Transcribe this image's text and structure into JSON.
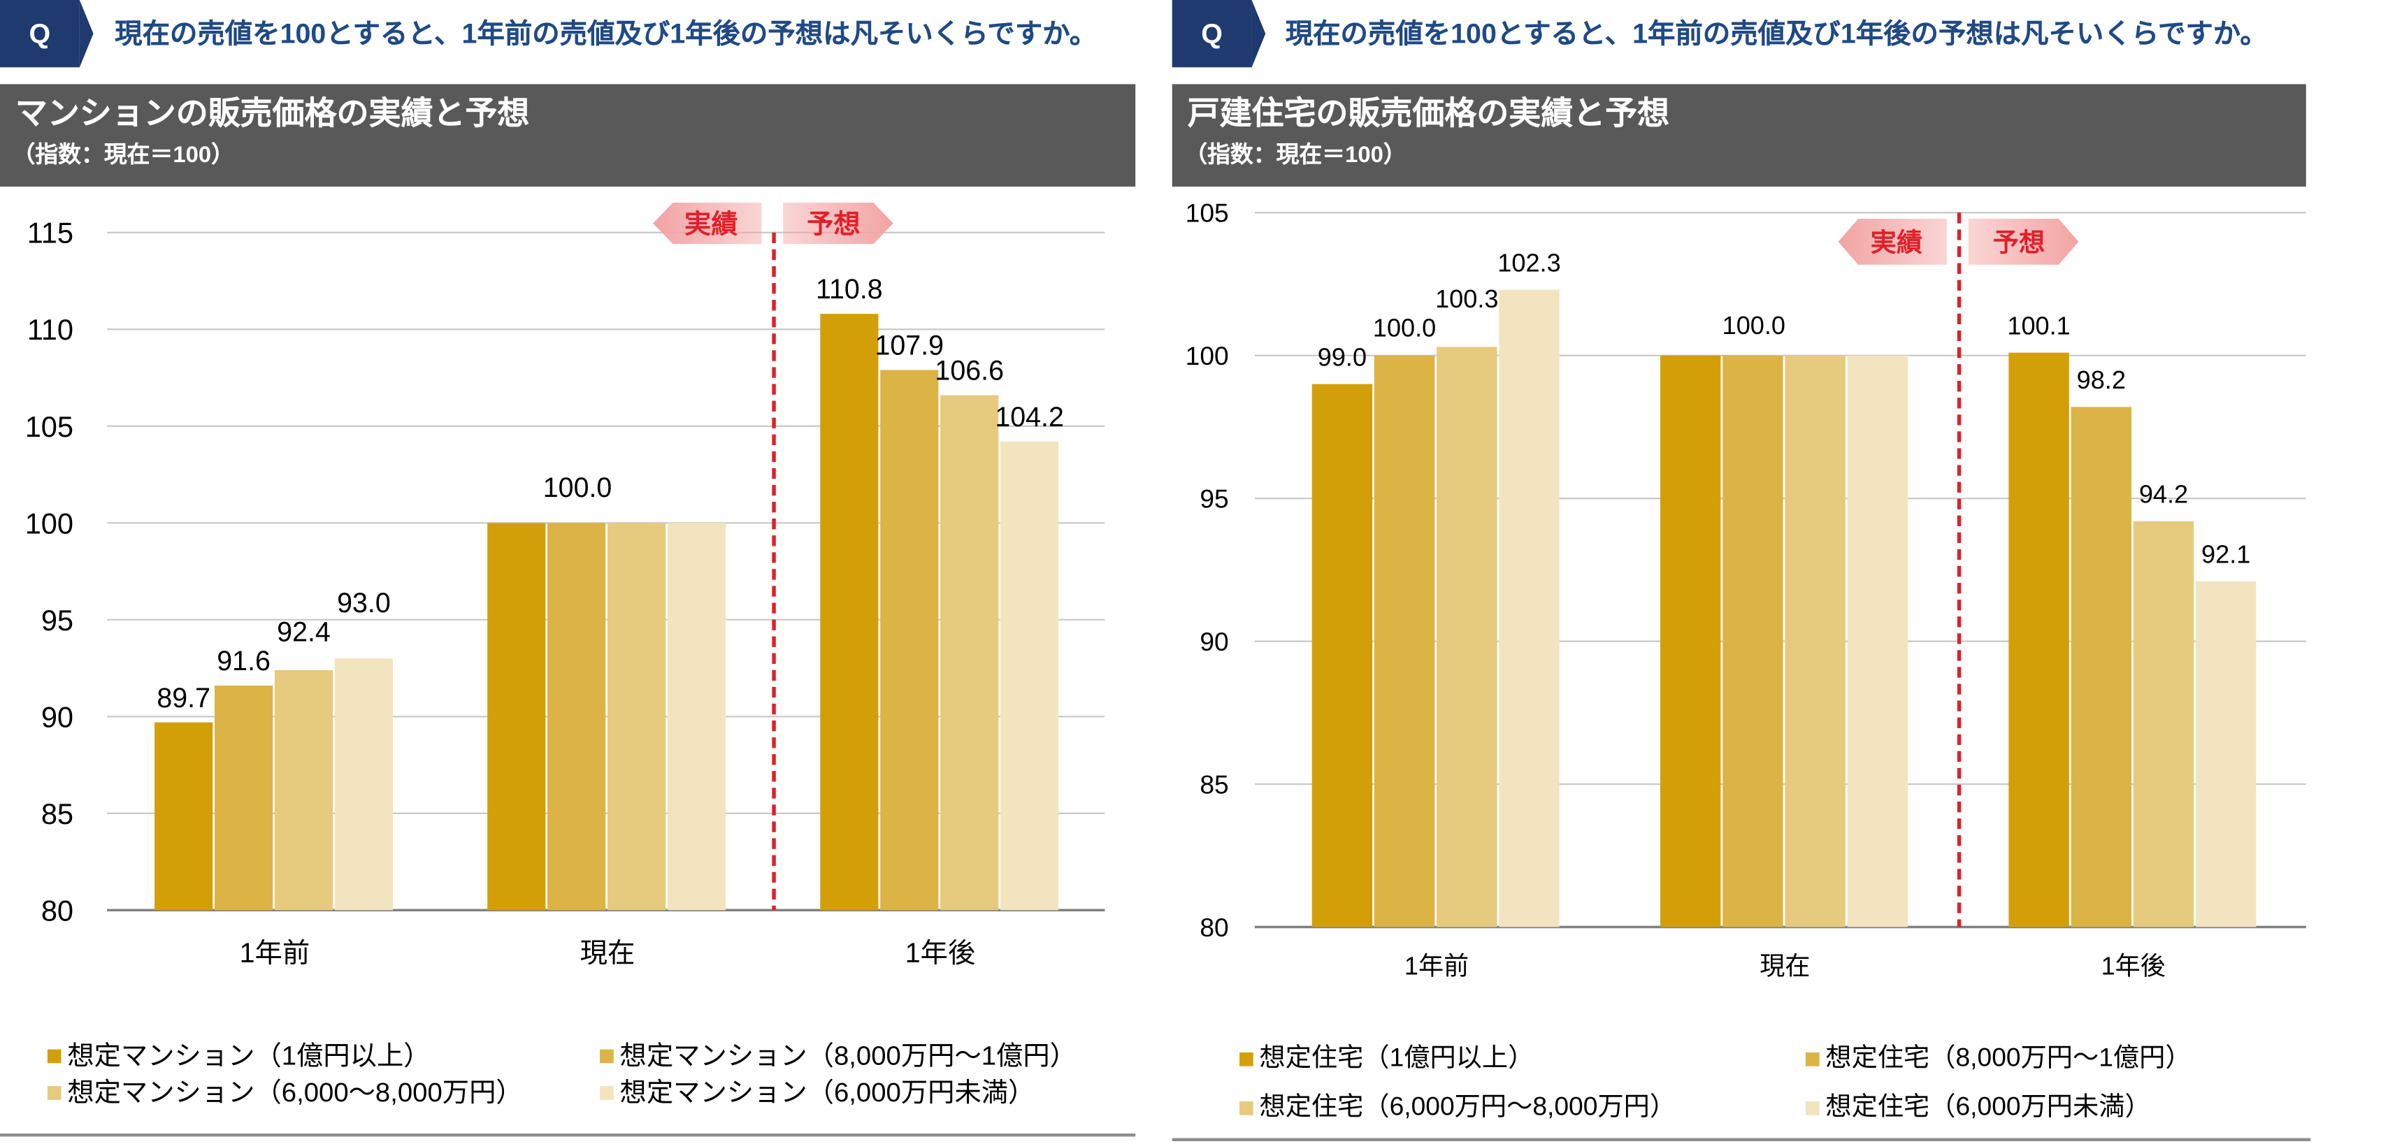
{
  "questions": [
    {
      "badge": "Q",
      "text": "現在の売値を100とすると、1年前の売値及び1年後の予想は凡そいくらですか。"
    },
    {
      "badge": "Q",
      "text": "現在の売値を100とすると、1年前の売値及び1年後の予想は凡そいくらですか。"
    }
  ],
  "colors": {
    "badge": "#1E3A6E",
    "question_text": "#1F4A85",
    "header_bg": "#595959",
    "header_text": "#FFFFFF",
    "divider": "#E0202A",
    "annotation_arrow": "#F3A3A3",
    "annotation_text": "#E0202A",
    "gridline": "#C8C8C8",
    "axis": "#808080"
  },
  "chart_data": [
    {
      "type": "bar",
      "title": "マンションの販売価格の実績と予想",
      "subtitle": "（指数：現在＝100）",
      "categories": [
        "1年前",
        "現在",
        "1年後"
      ],
      "series": [
        {
          "name": "想定マンション（1億円以上）",
          "color": "#D39F09",
          "values": [
            89.7,
            100.0,
            110.8
          ]
        },
        {
          "name": "想定マンション（8,000万円～1億円）",
          "color": "#DCB345",
          "values": [
            91.6,
            100.0,
            107.9
          ]
        },
        {
          "name": "想定マンション（6,000～8,000万円）",
          "color": "#E6CA7D",
          "values": [
            92.4,
            100.0,
            106.6
          ]
        },
        {
          "name": "想定マンション（6,000万円未満）",
          "color": "#F2E4BE",
          "values": [
            93.0,
            100.0,
            104.2
          ]
        }
      ],
      "data_labels": [
        [
          "89.7",
          "91.6",
          "92.4",
          "93.0"
        ],
        [
          "100.0"
        ],
        [
          "110.8",
          "107.9",
          "106.6",
          "104.2"
        ]
      ],
      "annotations": {
        "actual": "実績",
        "forecast": "予想"
      },
      "ylim": [
        80,
        115
      ],
      "yticks": [
        80,
        85,
        90,
        95,
        100,
        105,
        110,
        115
      ],
      "grid": true,
      "legend": "bottom"
    },
    {
      "type": "bar",
      "title": "戸建住宅の販売価格の実績と予想",
      "subtitle": "（指数：現在＝100）",
      "categories": [
        "1年前",
        "現在",
        "1年後"
      ],
      "series": [
        {
          "name": "想定住宅（1億円以上）",
          "color": "#D39F09",
          "values": [
            99.0,
            100.0,
            100.1
          ]
        },
        {
          "name": "想定住宅（8,000万円～1億円）",
          "color": "#DCB345",
          "values": [
            100.0,
            100.0,
            98.2
          ]
        },
        {
          "name": "想定住宅（6,000万円～8,000万円）",
          "color": "#E6CA7D",
          "values": [
            100.3,
            100.0,
            94.2
          ]
        },
        {
          "name": "想定住宅（6,000万円未満）",
          "color": "#F2E4BE",
          "values": [
            102.3,
            100.0,
            92.1
          ]
        }
      ],
      "data_labels": [
        [
          "99.0",
          "100.0",
          "100.3",
          "102.3"
        ],
        [
          "100.0"
        ],
        [
          "100.1",
          "98.2",
          "94.2",
          "92.1"
        ]
      ],
      "annotations": {
        "actual": "実績",
        "forecast": "予想"
      },
      "ylim": [
        80,
        105
      ],
      "yticks": [
        80,
        85,
        90,
        95,
        100,
        105
      ],
      "grid": true,
      "legend": "bottom"
    }
  ]
}
